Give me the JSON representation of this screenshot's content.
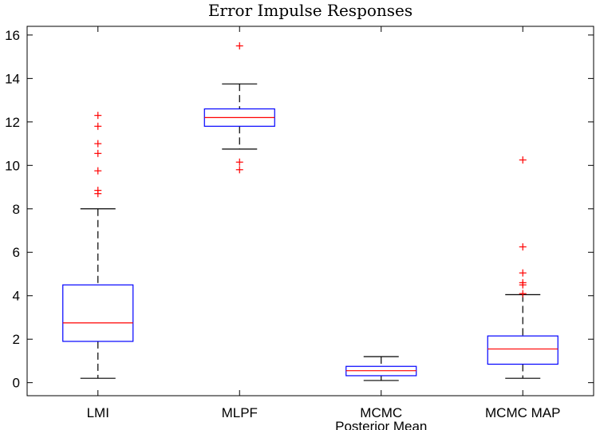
{
  "chart_data": {
    "type": "box",
    "title": "Error Impulse Responses",
    "xlabel": "",
    "ylabel": "",
    "ylim": [
      -0.6,
      16.4
    ],
    "yticks": [
      0,
      2,
      4,
      6,
      8,
      10,
      12,
      14,
      16
    ],
    "categories": [
      "LMI",
      "MLPF",
      "MCMC\nPosterior Mean",
      "MCMC MAP"
    ],
    "boxes": [
      {
        "label": "LMI",
        "whisker_low": 0.2,
        "q1": 1.9,
        "median": 2.75,
        "q3": 4.5,
        "whisker_high": 8.0,
        "outliers": [
          8.7,
          8.85,
          9.75,
          10.55,
          11.0,
          11.8,
          12.3
        ]
      },
      {
        "label": "MLPF",
        "whisker_low": 10.75,
        "q1": 11.8,
        "median": 12.2,
        "q3": 12.6,
        "whisker_high": 13.75,
        "outliers": [
          9.8,
          10.15,
          15.5
        ]
      },
      {
        "label": "MCMC Posterior Mean",
        "whisker_low": 0.1,
        "q1": 0.32,
        "median": 0.55,
        "q3": 0.75,
        "whisker_high": 1.2,
        "outliers": []
      },
      {
        "label": "MCMC MAP",
        "whisker_low": 0.2,
        "q1": 0.85,
        "median": 1.55,
        "q3": 2.15,
        "whisker_high": 4.05,
        "outliers": [
          4.1,
          4.5,
          4.6,
          5.05,
          6.25,
          10.25
        ]
      }
    ],
    "colors": {
      "box": "#0000ff",
      "median": "#ff0000",
      "outlier": "#ff0000",
      "whisker": "#000000",
      "axis": "#000000"
    },
    "grid": false
  }
}
